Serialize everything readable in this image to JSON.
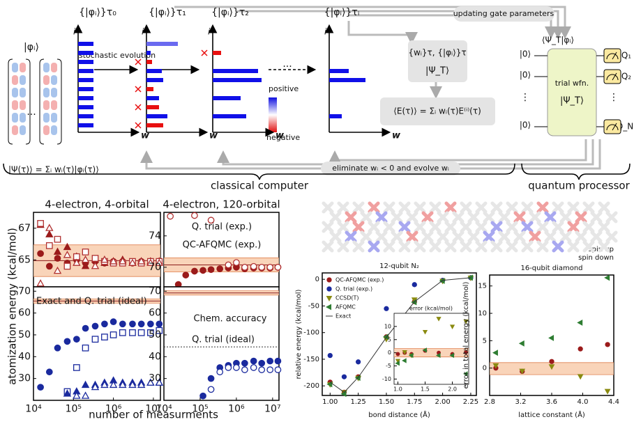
{
  "diagram": {
    "basis": "|φᵢ⟩",
    "sets": [
      "{|φᵢ⟩}τ₀",
      "{|φᵢ⟩}τ₁",
      "{|φᵢ⟩}τ₂",
      "{|φᵢ⟩}τᵢ"
    ],
    "axis_i": "i",
    "axis_w": "w",
    "ellipsis": "···",
    "vdots": "⋮",
    "evolution": "stochastic evolution",
    "positive": "positive",
    "negative": "negative",
    "updating": "updating gate parameters",
    "walkers": "{wᵢ}τ, {|φᵢ⟩}τ",
    "trial": "|Ψ_T⟩",
    "energy": "⟨E(τ)⟩ = Σᵢ wᵢ(τ)E⁽ⁱ⁾(τ)",
    "state": "|Ψ(τ)⟩ = Σᵢ wᵢ(τ)|φᵢ(τ)⟩",
    "eliminate": "eliminate wᵢ < 0 and evolve wᵢ",
    "overlap": "⟨Ψ_T|φᵢ⟩",
    "zero": "|0⟩",
    "trial_wfn": "trial wfn.",
    "qubits": [
      "Q₁",
      "Q₂",
      "Q_N"
    ],
    "classical": "classical computer",
    "quantum": "quantum processor",
    "spin_up": "spin up",
    "spin_down": "spin down"
  },
  "chart_data": [
    {
      "type": "scatter",
      "title": "4-electron, 4-orbital",
      "xlog": true,
      "x": [
        15000,
        25000,
        40000,
        70000,
        120000,
        200000,
        350000,
        600000,
        1000000,
        1700000,
        3000000,
        5000000,
        8500000,
        14000000
      ],
      "xlim": [
        10000,
        15000000
      ],
      "ylim": [
        63.3,
        68
      ],
      "yticks": [
        65,
        67
      ],
      "band": [
        63.95,
        65.95
      ],
      "reference": 64.95,
      "band_color": "#f7c9a8",
      "series": [
        {
          "color": "#9b1b1b",
          "marker": "circle",
          "filled": true,
          "values": [
            65.4,
            64.6,
            65.1,
            64.8,
            65.0,
            64.8,
            64.9,
            64.8,
            64.9,
            64.9,
            64.8,
            64.9,
            64.9,
            64.9
          ]
        },
        {
          "color": "#9b1b1b",
          "marker": "triangle-up",
          "filled": true,
          "values": [
            67.2,
            66.6,
            65.5,
            65.8,
            65.2,
            64.6,
            65.0,
            64.8,
            64.9,
            65.0,
            64.8,
            64.9,
            64.9,
            64.9
          ]
        },
        {
          "color": "#b03030",
          "marker": "square",
          "filled": false,
          "values": [
            67.3,
            65.9,
            66.3,
            64.6,
            65.2,
            65.5,
            65.1,
            64.9,
            64.8,
            64.8,
            64.9,
            64.8,
            64.9,
            64.9
          ]
        },
        {
          "color": "#b03030",
          "marker": "triangle-up",
          "filled": false,
          "values": [
            63.5,
            67.0,
            64.3,
            65.3,
            64.8,
            65.0,
            64.6,
            65.0,
            64.9,
            64.9,
            64.8,
            64.9,
            64.8,
            64.8
          ]
        }
      ]
    },
    {
      "type": "scatter",
      "xlog": true,
      "x": [
        15000,
        25000,
        40000,
        70000,
        120000,
        200000,
        350000,
        600000,
        1000000,
        1700000,
        3000000,
        5000000,
        8500000,
        14000000
      ],
      "xlim": [
        10000,
        15000000
      ],
      "xticks": [
        {
          "value": 10000,
          "label": "10⁴"
        },
        {
          "value": 100000,
          "label": "10⁵"
        },
        {
          "value": 1000000,
          "label": "10⁶"
        },
        {
          "value": 10000000,
          "label": "10⁷"
        }
      ],
      "ylim": [
        20,
        72
      ],
      "yticks": [
        30,
        40,
        50,
        60,
        70
      ],
      "band": [
        64.5,
        66.5
      ],
      "reference": 65.5,
      "band_color": "#f7c9a8",
      "xlabel": "number of measurments",
      "ylabel": "atomization energy (kcal/mol)",
      "annotations": [
        {
          "text": "Exact and Q. trial (ideal)",
          "color": "#111111"
        }
      ],
      "series": [
        {
          "color": "#1a2a9e",
          "marker": "circle",
          "filled": true,
          "values": [
            26,
            33,
            44,
            47,
            48,
            53,
            54,
            55,
            56,
            55,
            55,
            55,
            55,
            55
          ]
        },
        {
          "color": "#1a2a9e",
          "marker": "square",
          "filled": false,
          "values": [
            null,
            null,
            null,
            24,
            35,
            44,
            48,
            49,
            50,
            51,
            51,
            51,
            51,
            52
          ]
        },
        {
          "color": "#1a2a9e",
          "marker": "triangle-up",
          "filled": true,
          "values": [
            null,
            null,
            null,
            23,
            24,
            27,
            27,
            28,
            29,
            28,
            28,
            28,
            28,
            28
          ]
        },
        {
          "color": "#1a2a9e",
          "marker": "triangle-up",
          "filled": false,
          "values": [
            null,
            null,
            null,
            null,
            22,
            22,
            26,
            27,
            27,
            27,
            27,
            27,
            28,
            28
          ]
        }
      ]
    },
    {
      "type": "scatter",
      "title": "4-electron, 120-orbital",
      "xlog": true,
      "x": [
        15000,
        25000,
        40000,
        70000,
        120000,
        200000,
        350000,
        600000,
        1000000,
        1700000,
        3000000,
        5000000,
        8500000,
        14000000
      ],
      "xlim": [
        10000,
        15000000
      ],
      "ylim": [
        67.5,
        77
      ],
      "yticks": [
        70,
        74
      ],
      "band": [
        69.4,
        71.2
      ],
      "reference": 70.3,
      "band_color": "#f7c9a8",
      "annotations": [
        {
          "text": "Q. trial (exp.)",
          "color": "#1a2a9e"
        },
        {
          "text": "QC-AFQMC (exp.)",
          "color": "#8b1a1a"
        }
      ],
      "series": [
        {
          "color": "#9b1b1b",
          "marker": "circle",
          "filled": true,
          "values": [
            null,
            67.8,
            69.0,
            69.5,
            69.6,
            69.7,
            69.8,
            69.9,
            70.0,
            69.8,
            69.9,
            69.9,
            69.9,
            70.0
          ]
        },
        {
          "color": "#b03030",
          "marker": "circle",
          "filled": false,
          "values": [
            76.5,
            null,
            null,
            76.6,
            null,
            76.0,
            null,
            70.3,
            70.6,
            70.0,
            70.1,
            70.0,
            70.0,
            70.0
          ]
        }
      ]
    },
    {
      "type": "scatter",
      "xlog": true,
      "x": [
        15000,
        25000,
        40000,
        70000,
        120000,
        200000,
        350000,
        600000,
        1000000,
        1700000,
        3000000,
        5000000,
        8500000,
        14000000
      ],
      "xlim": [
        10000,
        15000000
      ],
      "xticks": [
        {
          "value": 10000,
          "label": "10⁴"
        },
        {
          "value": 100000,
          "label": "10⁵"
        },
        {
          "value": 1000000,
          "label": "10⁶"
        },
        {
          "value": 10000000,
          "label": "10⁷"
        }
      ],
      "ylim": [
        20,
        72
      ],
      "yticks": [
        30,
        40,
        50,
        60,
        70
      ],
      "band": [
        68.2,
        70.2
      ],
      "reference": 69.2,
      "band_color": "#f7c9a8",
      "ideal": 44.5,
      "annotations": [
        {
          "text": "Chem. accuracy",
          "color": "#f08020"
        },
        {
          "text": "Q. trial (ideal)",
          "color": "#111111"
        }
      ],
      "series": [
        {
          "color": "#1a2a9e",
          "marker": "circle",
          "filled": true,
          "values": [
            null,
            null,
            null,
            null,
            22,
            30,
            35,
            36,
            37,
            37,
            38,
            37,
            38,
            38
          ]
        },
        {
          "color": "#1a2a9e",
          "marker": "circle",
          "filled": false,
          "values": [
            null,
            null,
            null,
            null,
            null,
            25,
            33,
            35,
            35,
            34,
            35,
            34,
            34,
            34
          ]
        }
      ]
    },
    {
      "type": "scatter",
      "title": "12-qubit N₂",
      "legend": "upper left",
      "x": [
        1.0,
        1.125,
        1.25,
        1.5,
        1.75,
        2.0,
        2.25
      ],
      "xlim": [
        0.93,
        2.3
      ],
      "xticks": [
        {
          "value": 1,
          "label": "1.00"
        },
        1.25,
        {
          "value": 1.5,
          "label": "1.50"
        },
        1.75,
        {
          "value": 2,
          "label": "2.00"
        },
        2.25
      ],
      "ylim": [
        -218,
        12
      ],
      "yticks": [
        0,
        -50,
        -100,
        -150,
        -200
      ],
      "xlabel": "bond distance (Å)",
      "ylabel": "relative energy (kcal/mol)",
      "series": [
        {
          "name": "QC-AFQMC (exp.)",
          "color": "#9b1b1b",
          "marker": "circle",
          "filled": true,
          "values": [
            -193,
            -212,
            -183,
            -108,
            -42,
            -2,
            3
          ]
        },
        {
          "name": "Q. trial (exp.)",
          "color": "#1a2a9e",
          "marker": "circle",
          "filled": true,
          "values": [
            -143,
            -183,
            -155,
            -55,
            -10,
            -2,
            3
          ]
        },
        {
          "name": "CCSD(T)",
          "color": "#8a8a10",
          "marker": "triangle-down",
          "filled": true,
          "values": [
            -197,
            -212,
            -185,
            -112,
            -38,
            -3,
            3
          ]
        },
        {
          "name": "AFQMC",
          "color": "#2e7d32",
          "marker": "triangle-left",
          "filled": true,
          "values": [
            -197,
            -215,
            -185,
            -108,
            -43,
            -3,
            3
          ]
        },
        {
          "name": "Exact",
          "color": "#333333",
          "marker": "line",
          "values": [
            -193,
            -212,
            -184,
            -109,
            -42,
            -2,
            3
          ]
        }
      ]
    },
    {
      "type": "scatter",
      "x": [
        1.0,
        1.125,
        1.25,
        1.5,
        1.75,
        2.0,
        2.25
      ],
      "xlim": [
        0.93,
        2.3
      ],
      "xticks": [
        {
          "value": 1,
          "label": "1.0"
        },
        1.5,
        {
          "value": 2,
          "label": "2.0"
        }
      ],
      "ylim": [
        -12,
        15
      ],
      "yticks": [
        -10,
        -5,
        0,
        5,
        10
      ],
      "band": [
        -1.6,
        1.6
      ],
      "band_color": "#f7c9a8",
      "annotations": [
        {
          "text": "error (kcal/mol)",
          "color": "#111111"
        }
      ],
      "series": [
        {
          "color": "#9b1b1b",
          "marker": "circle",
          "filled": true,
          "values": [
            -0.5,
            0,
            -0.5,
            0.8,
            0,
            -0.5,
            0.2
          ]
        },
        {
          "color": "#8a8a10",
          "marker": "triangle-down",
          "filled": true,
          "values": [
            -3,
            0.3,
            -1,
            8,
            13,
            10,
            12
          ]
        },
        {
          "color": "#2e7d32",
          "marker": "triangle-left",
          "filled": true,
          "values": [
            -4,
            -3,
            -1,
            1,
            -1,
            -1,
            -8
          ]
        }
      ]
    },
    {
      "type": "scatter",
      "title": "16-qubit diamond",
      "x": [
        2.88,
        3.22,
        3.6,
        3.97,
        4.32
      ],
      "xlim": [
        2.8,
        4.4
      ],
      "xticks": [
        2.8,
        3.2,
        3.6,
        {
          "value": 4,
          "label": "4.0"
        },
        4.4
      ],
      "ylim": [
        -5,
        17
      ],
      "yticks": [
        0,
        5,
        10,
        15
      ],
      "band": [
        -1.2,
        1.0
      ],
      "band_color": "#f7c9a8",
      "xlabel": "lattice constant (Å)",
      "ylabel": "error in total energy (kcal/mol)",
      "series": [
        {
          "color": "#9b1b1b",
          "marker": "circle",
          "filled": true,
          "values": [
            0,
            -0.6,
            1.2,
            3.5,
            4.3
          ]
        },
        {
          "color": "#8a8a10",
          "marker": "triangle-down",
          "filled": true,
          "values": [
            0.5,
            -0.5,
            0.3,
            -1.5,
            -4.2
          ]
        },
        {
          "color": "#2e7d32",
          "marker": "triangle-left",
          "filled": true,
          "values": [
            2.8,
            4.5,
            5.5,
            8.3,
            16.5
          ]
        }
      ]
    }
  ]
}
